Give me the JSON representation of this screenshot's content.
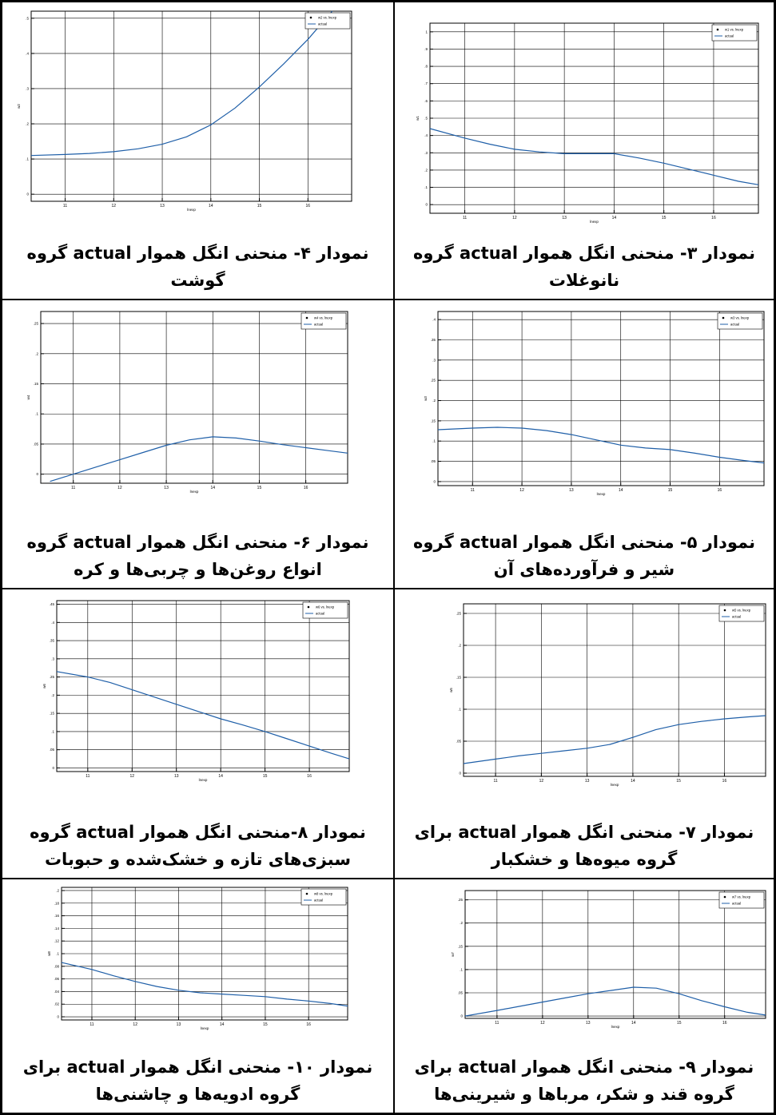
{
  "cells": [
    {
      "caption": "نمودار ۴- منحنی انگل هموار actual گروه گوشت",
      "chart_data": {
        "type": "line",
        "xlabel": "lnexp",
        "ylabel": "w2",
        "xlim": [
          10.3,
          16.9
        ],
        "ylim": [
          -0.02,
          0.52
        ],
        "xticks": [
          11,
          12,
          13,
          14,
          15,
          16
        ],
        "yticks": [
          0,
          0.1,
          0.2,
          0.3,
          0.4,
          0.5
        ],
        "legend": {
          "position": "top-right",
          "entries": [
            "w2 vs. lnexp",
            "actual"
          ]
        },
        "grid": true,
        "series": [
          {
            "name": "actual",
            "x": [
              10.3,
              11,
              11.5,
              12,
              12.5,
              13,
              13.5,
              14,
              14.5,
              15,
              15.5,
              16,
              16.5
            ],
            "y": [
              0.11,
              0.113,
              0.116,
              0.121,
              0.129,
              0.142,
              0.163,
              0.197,
              0.245,
              0.305,
              0.37,
              0.44,
              0.52
            ]
          }
        ]
      }
    },
    {
      "caption": "نمودار ۳- منحنی انگل هموار actual گروه نانوغلات",
      "chart_data": {
        "type": "line",
        "xlabel": "lnexp",
        "ylabel": "w1",
        "xlim": [
          10.3,
          16.9
        ],
        "ylim": [
          -0.05,
          1.05
        ],
        "xticks": [
          11,
          12,
          13,
          14,
          15,
          16
        ],
        "yticks": [
          0,
          0.1,
          0.2,
          0.3,
          0.4,
          0.5,
          0.6,
          0.7,
          0.8,
          0.9,
          1
        ],
        "legend": {
          "position": "top-right",
          "entries": [
            "w1 vs. lnexp",
            "actual"
          ]
        },
        "grid": true,
        "series": [
          {
            "name": "actual",
            "x": [
              10.3,
              11,
              11.5,
              12,
              12.5,
              13,
              13.5,
              14,
              14.5,
              15,
              15.5,
              16,
              16.5,
              16.9
            ],
            "y": [
              0.44,
              0.385,
              0.35,
              0.32,
              0.305,
              0.295,
              0.295,
              0.295,
              0.27,
              0.24,
              0.205,
              0.17,
              0.135,
              0.115
            ]
          }
        ]
      }
    },
    {
      "caption": "نمودار ۶- منحنی انگل هموار actual گروه انواع روغن‌ها و چربی‌ها و کره",
      "chart_data": {
        "type": "line",
        "xlabel": "lnexp",
        "ylabel": "w4",
        "xlim": [
          10.3,
          16.9
        ],
        "ylim": [
          -0.015,
          0.27
        ],
        "xticks": [
          11,
          12,
          13,
          14,
          15,
          16
        ],
        "yticks": [
          0,
          0.05,
          0.1,
          0.15,
          0.2,
          0.25
        ],
        "legend": {
          "position": "top-right",
          "entries": [
            "w4 vs. lnexp",
            "actual"
          ]
        },
        "grid": true,
        "series": [
          {
            "name": "actual",
            "x": [
              10.5,
              11,
              11.5,
              12,
              12.5,
              13,
              13.5,
              14,
              14.5,
              15,
              15.5,
              16,
              16.5,
              16.9
            ],
            "y": [
              -0.012,
              0.0,
              0.012,
              0.024,
              0.036,
              0.048,
              0.057,
              0.062,
              0.06,
              0.055,
              0.049,
              0.044,
              0.039,
              0.035
            ]
          }
        ]
      }
    },
    {
      "caption": "نمودار ۵- منحنی انگل هموار actual گروه شیر و فرآورده‌های آن",
      "chart_data": {
        "type": "line",
        "xlabel": "lnexp",
        "ylabel": "w3",
        "xlim": [
          10.3,
          16.9
        ],
        "ylim": [
          -0.01,
          0.42
        ],
        "xticks": [
          11,
          12,
          13,
          14,
          15,
          16
        ],
        "yticks": [
          0,
          0.05,
          0.1,
          0.15,
          0.2,
          0.25,
          0.3,
          0.35,
          0.4
        ],
        "legend": {
          "position": "top-right",
          "entries": [
            "w3 vs. lnexp",
            "actual"
          ]
        },
        "grid": true,
        "series": [
          {
            "name": "actual",
            "x": [
              10.3,
              11,
              11.5,
              12,
              12.5,
              13,
              13.5,
              14,
              14.5,
              15,
              15.5,
              16,
              16.5,
              16.9
            ],
            "y": [
              0.128,
              0.132,
              0.134,
              0.132,
              0.126,
              0.116,
              0.103,
              0.09,
              0.083,
              0.079,
              0.07,
              0.06,
              0.052,
              0.046
            ]
          }
        ]
      }
    },
    {
      "caption": "نمودار ۸-منحنی انگل هموار actual گروه سبزی‌های تازه و خشک‌شده و حبوبات",
      "chart_data": {
        "type": "line",
        "xlabel": "lnexp",
        "ylabel": "w6",
        "xlim": [
          10.3,
          16.9
        ],
        "ylim": [
          -0.01,
          0.46
        ],
        "xticks": [
          11,
          12,
          13,
          14,
          15,
          16
        ],
        "yticks": [
          0,
          0.05,
          0.1,
          0.15,
          0.2,
          0.25,
          0.3,
          0.35,
          0.4,
          0.45
        ],
        "legend": {
          "position": "top-right",
          "entries": [
            "w6 vs. lnexp",
            "actual"
          ]
        },
        "grid": true,
        "series": [
          {
            "name": "actual",
            "x": [
              10.3,
              11,
              11.5,
              12,
              12.5,
              13,
              13.5,
              14,
              14.5,
              15,
              15.5,
              16,
              16.5,
              16.9
            ],
            "y": [
              0.265,
              0.25,
              0.235,
              0.215,
              0.195,
              0.175,
              0.155,
              0.135,
              0.118,
              0.1,
              0.08,
              0.06,
              0.04,
              0.025
            ]
          }
        ]
      }
    },
    {
      "caption": "نمودار ۷- منحنی انگل هموار actual برای گروه میوه‌ها و خشکبار",
      "chart_data": {
        "type": "line",
        "xlabel": "lnexp",
        "ylabel": "w5",
        "xlim": [
          10.3,
          16.9
        ],
        "ylim": [
          -0.005,
          0.265
        ],
        "xticks": [
          11,
          12,
          13,
          14,
          15,
          16
        ],
        "yticks": [
          0,
          0.05,
          0.1,
          0.15,
          0.2,
          0.25
        ],
        "legend": {
          "position": "top-right",
          "entries": [
            "w5 vs. lnexp",
            "actual"
          ]
        },
        "grid": true,
        "series": [
          {
            "name": "actual",
            "x": [
              10.3,
              11,
              11.5,
              12,
              12.5,
              13,
              13.5,
              14,
              14.5,
              15,
              15.5,
              16,
              16.5,
              16.9
            ],
            "y": [
              0.015,
              0.022,
              0.027,
              0.031,
              0.035,
              0.039,
              0.045,
              0.056,
              0.068,
              0.076,
              0.081,
              0.085,
              0.088,
              0.09
            ]
          }
        ]
      }
    },
    {
      "caption": "نمودار ۱۰- منحنی انگل هموار actual برای گروه ادویه‌ها و چاشنی‌ها",
      "chart_data": {
        "type": "line",
        "xlabel": "lnexp",
        "ylabel": "w8",
        "xlim": [
          10.3,
          16.9
        ],
        "ylim": [
          -0.005,
          0.205
        ],
        "xticks": [
          11,
          12,
          13,
          14,
          15,
          16
        ],
        "yticks": [
          0,
          0.02,
          0.04,
          0.06,
          0.08,
          0.1,
          0.12,
          0.14,
          0.16,
          0.18,
          0.2
        ],
        "legend": {
          "position": "top-right",
          "entries": [
            "w8 vs. lnexp",
            "actual"
          ]
        },
        "grid": true,
        "series": [
          {
            "name": "actual",
            "x": [
              10.3,
              11,
              11.5,
              12,
              12.5,
              13,
              13.5,
              14,
              14.5,
              15,
              15.5,
              16,
              16.5,
              16.9
            ],
            "y": [
              0.086,
              0.075,
              0.065,
              0.056,
              0.048,
              0.042,
              0.038,
              0.036,
              0.034,
              0.032,
              0.028,
              0.025,
              0.021,
              0.017
            ]
          }
        ]
      }
    },
    {
      "caption": "نمودار ۹- منحنی انگل هموار actual برای گروه قند و شکر، مرباها و شیرینی‌ها",
      "chart_data": {
        "type": "line",
        "xlabel": "lnexp",
        "ylabel": "w7",
        "xlim": [
          10.3,
          16.9
        ],
        "ylim": [
          -0.005,
          0.27
        ],
        "xticks": [
          11,
          12,
          13,
          14,
          15,
          16
        ],
        "yticks": [
          0,
          0.05,
          0.1,
          0.15,
          0.2,
          0.25
        ],
        "legend": {
          "position": "top-right",
          "entries": [
            "w7 vs. lnexp",
            "actual"
          ]
        },
        "grid": true,
        "series": [
          {
            "name": "actual",
            "x": [
              10.3,
              11,
              11.5,
              12,
              12.5,
              13,
              13.5,
              14,
              14.5,
              15,
              15.5,
              16,
              16.5,
              16.9
            ],
            "y": [
              0.0,
              0.012,
              0.021,
              0.03,
              0.039,
              0.048,
              0.055,
              0.062,
              0.06,
              0.048,
              0.033,
              0.02,
              0.008,
              0.002
            ]
          }
        ]
      }
    }
  ]
}
